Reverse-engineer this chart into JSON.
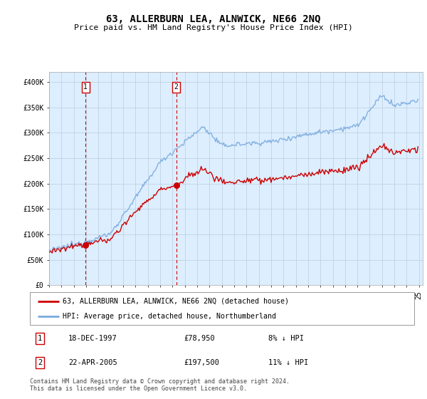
{
  "title": "63, ALLERBURN LEA, ALNWICK, NE66 2NQ",
  "subtitle": "Price paid vs. HM Land Registry's House Price Index (HPI)",
  "ylim": [
    0,
    420000
  ],
  "yticks": [
    0,
    50000,
    100000,
    150000,
    200000,
    250000,
    300000,
    350000,
    400000
  ],
  "ytick_labels": [
    "£0",
    "£50K",
    "£100K",
    "£150K",
    "£200K",
    "£250K",
    "£300K",
    "£350K",
    "£400K"
  ],
  "hpi_color": "#7aaadd",
  "price_color": "#cc0000",
  "vline_color": "#cc0000",
  "annotation1_label": "1",
  "annotation1_year": 1997.96,
  "annotation1_price": 78950,
  "annotation1_date": "18-DEC-1997",
  "annotation1_price_str": "£78,950",
  "annotation1_pct": "8% ↓ HPI",
  "annotation2_label": "2",
  "annotation2_year": 2005.31,
  "annotation2_price": 197500,
  "annotation2_date": "22-APR-2005",
  "annotation2_price_str": "£197,500",
  "annotation2_pct": "11% ↓ HPI",
  "legend_line1": "63, ALLERBURN LEA, ALNWICK, NE66 2NQ (detached house)",
  "legend_line2": "HPI: Average price, detached house, Northumberland",
  "footnote": "Contains HM Land Registry data © Crown copyright and database right 2024.\nThis data is licensed under the Open Government Licence v3.0.",
  "background_color": "#ddeeff",
  "grid_color": "#bbccdd"
}
